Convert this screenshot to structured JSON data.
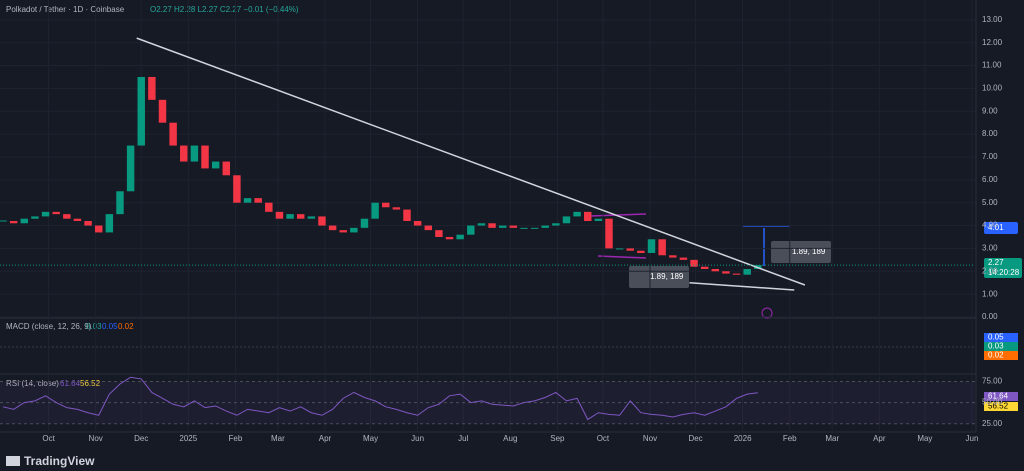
{
  "header": {
    "title": "Polkadot / Tether · 1D · Coinbase",
    "ohlc": "O2.27 H2.28 L2.27 C2.27 −0.01 (−0.44%)"
  },
  "chart_data": [
    {
      "type": "candlestick",
      "x": [
        0,
        7,
        14,
        21,
        28,
        35,
        42,
        49,
        56,
        63,
        70,
        77,
        84,
        91,
        98,
        105,
        112,
        119,
        126,
        133,
        140,
        147,
        154,
        161,
        168,
        175,
        182,
        189,
        196,
        203,
        210,
        217,
        224,
        231,
        238,
        245,
        252,
        259,
        266,
        273,
        280,
        287,
        294,
        301,
        308,
        315,
        322,
        329,
        336,
        343,
        350,
        357,
        364,
        371,
        378,
        385,
        392,
        399,
        406,
        413,
        420,
        427,
        434,
        441,
        448,
        455,
        462,
        469,
        476,
        483,
        490,
        497
      ],
      "close": [
        4.2,
        4.1,
        4.3,
        4.4,
        4.6,
        4.5,
        4.3,
        4.2,
        4.0,
        3.7,
        4.5,
        5.5,
        7.5,
        10.5,
        9.5,
        8.5,
        7.5,
        6.8,
        7.5,
        6.5,
        6.8,
        6.2,
        5.0,
        5.2,
        5.0,
        4.6,
        4.3,
        4.5,
        4.3,
        4.4,
        4.0,
        3.8,
        3.7,
        3.9,
        4.3,
        5.0,
        4.8,
        4.7,
        4.2,
        4.0,
        3.8,
        3.5,
        3.4,
        3.6,
        4.0,
        4.1,
        3.9,
        4.0,
        3.9,
        3.9,
        3.9,
        4.0,
        4.1,
        4.4,
        4.6,
        4.2,
        4.3,
        3.0,
        3.0,
        2.9,
        2.8,
        3.4,
        2.7,
        2.6,
        2.5,
        2.2,
        2.1,
        2.0,
        1.9,
        1.85,
        2.1,
        2.27
      ],
      "up_color": "#089981",
      "down_color": "#f23645",
      "xlim": [
        -2,
        640
      ],
      "ylim": [
        0,
        13.5
      ],
      "xticks": [
        {
          "value": 30,
          "label": "Oct"
        },
        {
          "value": 61,
          "label": "Nov"
        },
        {
          "value": 91,
          "label": "Dec"
        },
        {
          "value": 122,
          "label": "2025"
        },
        {
          "value": 153,
          "label": "Feb"
        },
        {
          "value": 181,
          "label": "Mar"
        },
        {
          "value": 212,
          "label": "Apr"
        },
        {
          "value": 242,
          "label": "May"
        },
        {
          "value": 273,
          "label": "Jun"
        },
        {
          "value": 303,
          "label": "Jul"
        },
        {
          "value": 334,
          "label": "Aug"
        },
        {
          "value": 365,
          "label": "Sep"
        },
        {
          "value": 395,
          "label": "Oct"
        },
        {
          "value": 426,
          "label": "Nov"
        },
        {
          "value": 456,
          "label": "Dec"
        },
        {
          "value": 487,
          "label": "2026"
        },
        {
          "value": 518,
          "label": "Feb"
        },
        {
          "value": 546,
          "label": "Mar"
        },
        {
          "value": 577,
          "label": "Apr"
        },
        {
          "value": 607,
          "label": "May"
        },
        {
          "value": 638,
          "label": "Jun"
        }
      ],
      "yticks": [
        {
          "value": 0,
          "label": "0.00"
        },
        {
          "value": 1,
          "label": "1.00"
        },
        {
          "value": 2,
          "label": "2.00"
        },
        {
          "value": 3,
          "label": "3.00"
        },
        {
          "value": 4,
          "label": "4.00"
        },
        {
          "value": 5,
          "label": "5.00"
        },
        {
          "value": 6,
          "label": "6.00"
        },
        {
          "value": 7,
          "label": "7.00"
        },
        {
          "value": 8,
          "label": "8.00"
        },
        {
          "value": 9,
          "label": "9.00"
        },
        {
          "value": 10,
          "label": "10.00"
        },
        {
          "value": 11,
          "label": "11.00"
        },
        {
          "value": 12,
          "label": "12.00"
        },
        {
          "value": 13,
          "label": "13.00"
        }
      ],
      "trendlines": [
        {
          "x": [
            88,
            528
          ],
          "y": [
            12.2,
            1.4
          ]
        },
        {
          "x": [
            452,
            521
          ],
          "y": [
            1.5,
            1.18
          ]
        }
      ],
      "measures": [
        "1.89, 189",
        "1.89, 189"
      ],
      "tags": {
        "target": "4.01",
        "last": "2.27",
        "countdown": "14:20:28"
      }
    },
    {
      "type": "macd",
      "title": "MACD (close, 12, 26, 9)",
      "labels": [
        "0.03",
        "0.05",
        "0.02"
      ]
    },
    {
      "type": "line",
      "title": "RSI (14, close)",
      "color": "#7e57c2",
      "x": [
        0,
        7,
        14,
        21,
        28,
        35,
        42,
        49,
        56,
        63,
        70,
        77,
        84,
        91,
        98,
        105,
        112,
        119,
        126,
        133,
        140,
        147,
        154,
        161,
        168,
        175,
        182,
        189,
        196,
        203,
        210,
        217,
        224,
        231,
        238,
        245,
        252,
        259,
        266,
        273,
        280,
        287,
        294,
        301,
        308,
        315,
        322,
        329,
        336,
        343,
        350,
        357,
        364,
        371,
        378,
        385,
        392,
        399,
        406,
        413,
        420,
        427,
        434,
        441,
        448,
        455,
        462,
        469,
        476,
        483,
        490,
        497
      ],
      "values": [
        45,
        42,
        50,
        52,
        58,
        50,
        44,
        42,
        38,
        35,
        60,
        72,
        80,
        78,
        62,
        55,
        48,
        45,
        52,
        44,
        46,
        40,
        35,
        42,
        40,
        38,
        44,
        40,
        45,
        38,
        35,
        42,
        55,
        62,
        56,
        52,
        45,
        42,
        38,
        35,
        44,
        48,
        58,
        60,
        50,
        52,
        48,
        47,
        46,
        50,
        52,
        56,
        62,
        52,
        55,
        30,
        38,
        36,
        35,
        52,
        38,
        36,
        35,
        33,
        36,
        38,
        35,
        40,
        45,
        55,
        60,
        61.64
      ],
      "xlim": [
        -2,
        640
      ],
      "ylim": [
        14,
        85
      ],
      "yticks": [
        {
          "value": 25,
          "label": "25.00"
        },
        {
          "value": 50,
          "label": "50.00"
        },
        {
          "value": 75,
          "label": "75.00"
        }
      ],
      "labels": [
        "61.64",
        "56.52"
      ]
    }
  ],
  "footer": "TradingView"
}
